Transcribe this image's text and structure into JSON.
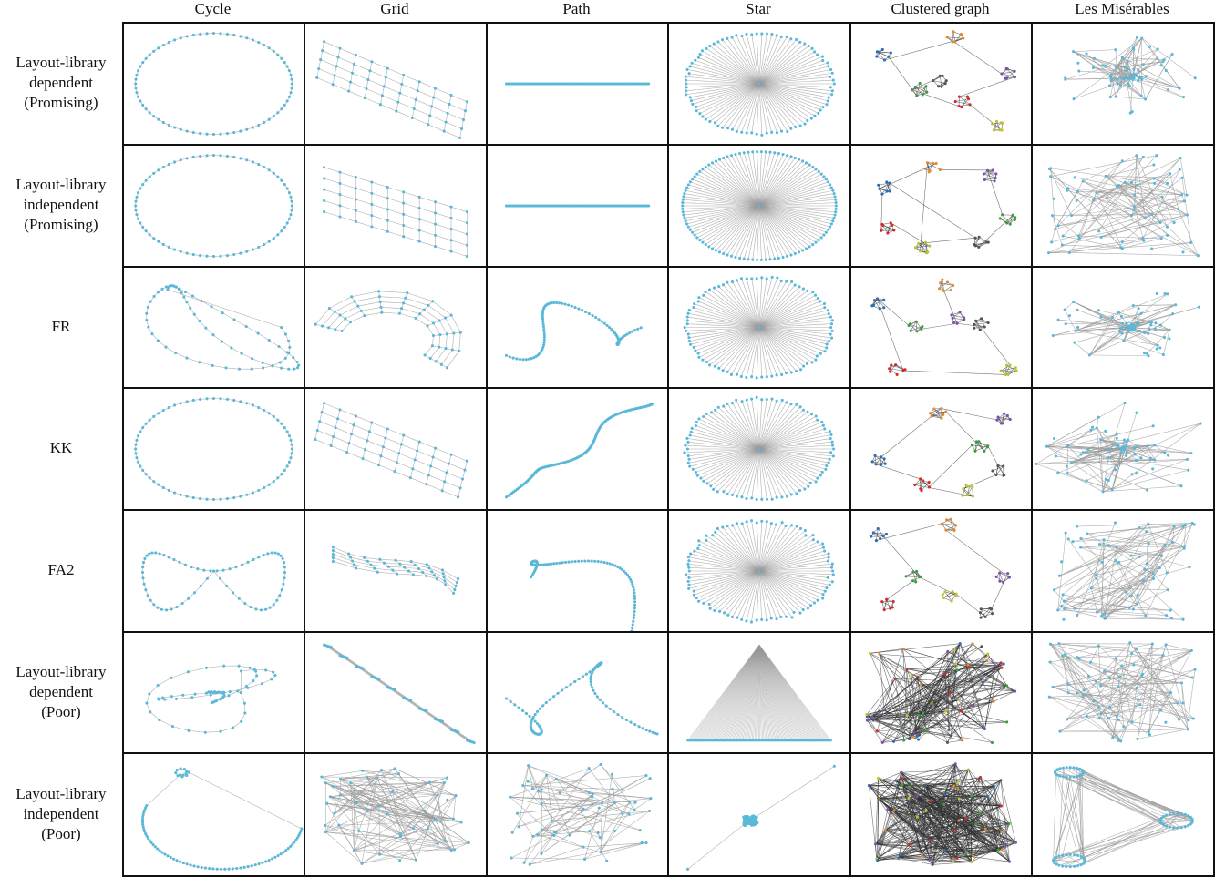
{
  "columns": [
    "Cycle",
    "Grid",
    "Path",
    "Star",
    "Clustered graph",
    "Les Misérables"
  ],
  "rows": [
    "Layout-library\ndependent\n(Promising)",
    "Layout-library\nindependent\n(Promising)",
    "FR",
    "KK",
    "FA2",
    "Layout-library\ndependent\n(Poor)",
    "Layout-library\nindependent\n(Poor)"
  ],
  "colors": {
    "node": "#5bb8d9",
    "edge": "#9a9a9a",
    "edge_dark": "#333333",
    "border": "#111111",
    "clusters": [
      "#2c6bb5",
      "#e38b2c",
      "#7d4fb0",
      "#3e9b3e",
      "#d22a2a",
      "#bfc22c",
      "#555555"
    ]
  }
}
